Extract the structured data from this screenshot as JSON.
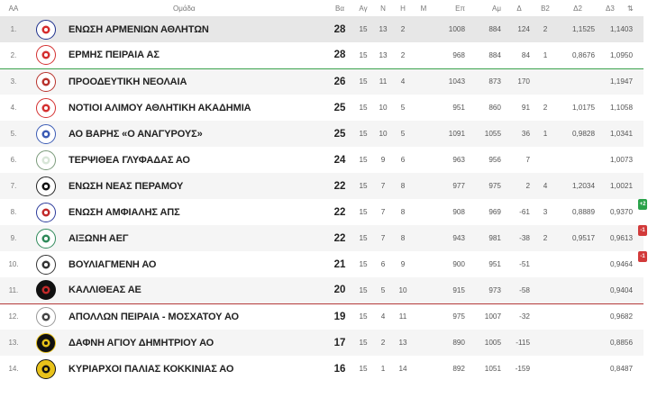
{
  "columns": {
    "pos": "AA",
    "team": "Ομάδα",
    "pts": "Βα",
    "played": "Αγ",
    "wins": "Ν",
    "draws": "Η",
    "losses": "Μ",
    "gf": "Επ",
    "ga": "Αμ",
    "diff": "Δ",
    "b2": "Β2",
    "d2": "Δ2",
    "d3": "Δ3",
    "sort_icon": "⇅"
  },
  "rows": [
    {
      "pos": "1.",
      "team": "ΕΝΩΣΗ ΑΡΜΕΝΙΩΝ ΑΘΛΗΤΩΝ",
      "pts": "28",
      "played": "15",
      "wins": "13",
      "draws": "2",
      "losses": "",
      "gf": "1008",
      "ga": "884",
      "diff": "124",
      "b2": "2",
      "d2": "1,1525",
      "d3": "1,1403",
      "badge": ""
    },
    {
      "pos": "2.",
      "team": "ΕΡΜΗΣ ΠΕΙΡΑΙΑ ΑΣ",
      "pts": "28",
      "played": "15",
      "wins": "13",
      "draws": "2",
      "losses": "",
      "gf": "968",
      "ga": "884",
      "diff": "84",
      "b2": "1",
      "d2": "0,8676",
      "d3": "1,0950",
      "badge": ""
    },
    {
      "pos": "3.",
      "team": "ΠΡΟΟΔΕΥΤΙΚΗ ΝΕΟΛΑΙΑ",
      "pts": "26",
      "played": "15",
      "wins": "11",
      "draws": "4",
      "losses": "",
      "gf": "1043",
      "ga": "873",
      "diff": "170",
      "b2": "",
      "d2": "",
      "d3": "1,1947",
      "badge": ""
    },
    {
      "pos": "4.",
      "team": "ΝΟΤΙΟΙ ΑΛΙΜΟΥ ΑΘΛΗΤΙΚΗ ΑΚΑΔΗΜΙΑ",
      "pts": "25",
      "played": "15",
      "wins": "10",
      "draws": "5",
      "losses": "",
      "gf": "951",
      "ga": "860",
      "diff": "91",
      "b2": "2",
      "d2": "1,0175",
      "d3": "1,1058",
      "badge": ""
    },
    {
      "pos": "5.",
      "team": "ΑΟ ΒΑΡΗΣ «Ο ΑΝΑΓΥΡΟΥΣ»",
      "pts": "25",
      "played": "15",
      "wins": "10",
      "draws": "5",
      "losses": "",
      "gf": "1091",
      "ga": "1055",
      "diff": "36",
      "b2": "1",
      "d2": "0,9828",
      "d3": "1,0341",
      "badge": ""
    },
    {
      "pos": "6.",
      "team": "ΤΕΡΨΙΘΕΑ ΓΛΥΦΑΔΑΣ ΑΟ",
      "pts": "24",
      "played": "15",
      "wins": "9",
      "draws": "6",
      "losses": "",
      "gf": "963",
      "ga": "956",
      "diff": "7",
      "b2": "",
      "d2": "",
      "d3": "1,0073",
      "badge": ""
    },
    {
      "pos": "7.",
      "team": "ΕΝΩΣΗ ΝΕΑΣ ΠΕΡΑΜΟΥ",
      "pts": "22",
      "played": "15",
      "wins": "7",
      "draws": "8",
      "losses": "",
      "gf": "977",
      "ga": "975",
      "diff": "2",
      "b2": "4",
      "d2": "1,2034",
      "d3": "1,0021",
      "badge": ""
    },
    {
      "pos": "8.",
      "team": "ΕΝΩΣΗ ΑΜΦΙΑΛΗΣ ΑΠΣ",
      "pts": "22",
      "played": "15",
      "wins": "7",
      "draws": "8",
      "losses": "",
      "gf": "908",
      "ga": "969",
      "diff": "-61",
      "b2": "3",
      "d2": "0,8889",
      "d3": "0,9370",
      "badge": "+2"
    },
    {
      "pos": "9.",
      "team": "ΑΙΞΩΝΗ ΑΕΓ",
      "pts": "22",
      "played": "15",
      "wins": "7",
      "draws": "8",
      "losses": "",
      "gf": "943",
      "ga": "981",
      "diff": "-38",
      "b2": "2",
      "d2": "0,9517",
      "d3": "0,9613",
      "badge": "-1"
    },
    {
      "pos": "10.",
      "team": "ΒΟΥΛΙΑΓΜΕΝΗ ΑΟ",
      "pts": "21",
      "played": "15",
      "wins": "6",
      "draws": "9",
      "losses": "",
      "gf": "900",
      "ga": "951",
      "diff": "-51",
      "b2": "",
      "d2": "",
      "d3": "0,9464",
      "badge": "-1"
    },
    {
      "pos": "11.",
      "team": "ΚΑΛΛΙΘΕΑΣ ΑΕ",
      "pts": "20",
      "played": "15",
      "wins": "5",
      "draws": "10",
      "losses": "",
      "gf": "915",
      "ga": "973",
      "diff": "-58",
      "b2": "",
      "d2": "",
      "d3": "0,9404",
      "badge": ""
    },
    {
      "pos": "12.",
      "team": "ΑΠΟΛΛΩΝ ΠΕΙΡΑΙΑ - ΜΟΣΧΑΤΟΥ ΑΟ",
      "pts": "19",
      "played": "15",
      "wins": "4",
      "draws": "11",
      "losses": "",
      "gf": "975",
      "ga": "1007",
      "diff": "-32",
      "b2": "",
      "d2": "",
      "d3": "0,9682",
      "badge": ""
    },
    {
      "pos": "13.",
      "team": "ΔΑΦΝΗ ΑΓΙΟΥ ΔΗΜΗΤΡΙΟΥ ΑΟ",
      "pts": "17",
      "played": "15",
      "wins": "2",
      "draws": "13",
      "losses": "",
      "gf": "890",
      "ga": "1005",
      "diff": "-115",
      "b2": "",
      "d2": "",
      "d3": "0,8856",
      "badge": ""
    },
    {
      "pos": "14.",
      "team": "ΚΥΡΙΑΡΧΟΙ ΠΑΛΙΑΣ ΚΟΚΚΙΝΙΑΣ ΑΟ",
      "pts": "16",
      "played": "15",
      "wins": "1",
      "draws": "14",
      "losses": "",
      "gf": "892",
      "ga": "1051",
      "diff": "-159",
      "b2": "",
      "d2": "",
      "d3": "0,8487",
      "badge": ""
    }
  ],
  "logos": [
    {
      "icon": "armenian-club-logo",
      "bg": "#ffffff",
      "ring": "#1d2f8c",
      "fill": "#d62b2b"
    },
    {
      "icon": "ermis-shield-logo",
      "bg": "#ffffff",
      "ring": "#d43030",
      "fill": "#d43030"
    },
    {
      "icon": "proodeftiki-crest-logo",
      "bg": "#ffffff",
      "ring": "#b8322c",
      "fill": "#b8322c"
    },
    {
      "icon": "notioi-s-logo",
      "bg": "#ffffff",
      "ring": "#d43030",
      "fill": "#d43030"
    },
    {
      "icon": "varis-blue-logo",
      "bg": "#ffffff",
      "ring": "#3b5bb5",
      "fill": "#3b5bb5"
    },
    {
      "icon": "terpsithea-green-logo",
      "bg": "#ffffff",
      "ring": "#7a9a7a",
      "fill": "#d8e6d8"
    },
    {
      "icon": "peramos-eagle-logo",
      "bg": "#ffffff",
      "ring": "#222222",
      "fill": "#111111"
    },
    {
      "icon": "amfiali-crest-logo",
      "bg": "#ffffff",
      "ring": "#2b3a9b",
      "fill": "#c22a2a"
    },
    {
      "icon": "aixoni-green-logo",
      "bg": "#ffffff",
      "ring": "#2f8a5a",
      "fill": "#2f8a5a"
    },
    {
      "icon": "vouliagmeni-stripes-logo",
      "bg": "#ffffff",
      "ring": "#333333",
      "fill": "#333333"
    },
    {
      "icon": "kallithea-ship-logo",
      "bg": "#111111",
      "ring": "#111111",
      "fill": "#c22a2a"
    },
    {
      "icon": "apollon-laurel-logo",
      "bg": "#ffffff",
      "ring": "#999999",
      "fill": "#444444"
    },
    {
      "icon": "dafni-yellow-logo",
      "bg": "#111111",
      "ring": "#e8c21a",
      "fill": "#e8c21a"
    },
    {
      "icon": "kyriarchoi-yellow-logo",
      "bg": "#e8c21a",
      "ring": "#111111",
      "fill": "#111111"
    }
  ]
}
